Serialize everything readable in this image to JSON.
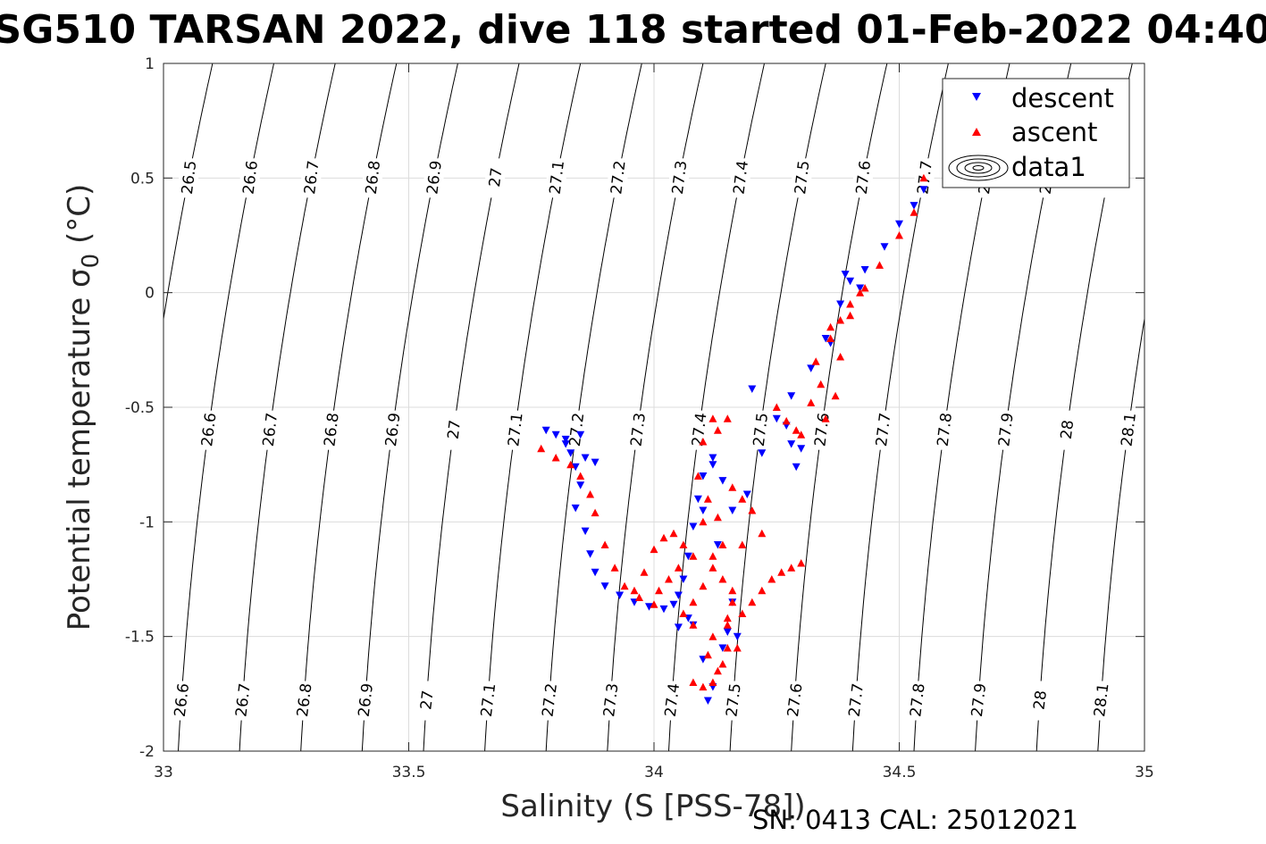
{
  "chart_data": {
    "type": "scatter",
    "title": "SG510 TARSAN 2022, dive 118 started 01-Feb-2022 04:40",
    "xlabel": "Salinity (S [PSS-78])",
    "ylabel_main": "Potential temperature ",
    "ylabel_sigma": "σ",
    "ylabel_sub": "0",
    "ylabel_unit": " (°C)",
    "xlim": [
      33,
      35
    ],
    "ylim": [
      -2,
      1
    ],
    "xticks": [
      33,
      33.5,
      34,
      34.5,
      35
    ],
    "yticks": [
      -2,
      -1.5,
      -1,
      -0.5,
      0,
      0.5,
      1
    ],
    "xtick_labels": [
      "33",
      "33.5",
      "34",
      "34.5",
      "35"
    ],
    "ytick_labels": [
      "-2",
      "-1.5",
      "-1",
      "-0.5",
      "0",
      "0.5",
      "1"
    ],
    "grid": true,
    "legend_position": "top-right",
    "footer": "SN: 0413  CAL: 25012021",
    "isopycnals": [
      26.5,
      26.6,
      26.7,
      26.8,
      26.9,
      27,
      27.1,
      27.2,
      27.3,
      27.4,
      27.5,
      27.6,
      27.7,
      27.8,
      27.9,
      28,
      28.1
    ],
    "isopycnal_labels": [
      "26.5",
      "26.6",
      "26.7",
      "26.8",
      "26.9",
      "27",
      "27.1",
      "27.2",
      "27.3",
      "27.4",
      "27.5",
      "27.6",
      "27.7",
      "27.8",
      "27.9",
      "28",
      "28.1"
    ],
    "series": [
      {
        "name": "descent",
        "marker": "triangle-down",
        "color": "#0000ff",
        "x": [
          33.78,
          33.8,
          33.82,
          33.83,
          33.84,
          33.85,
          33.84,
          33.86,
          33.87,
          33.88,
          33.9,
          33.93,
          33.96,
          33.99,
          34.02,
          34.04,
          34.05,
          34.06,
          34.07,
          34.08,
          34.09,
          34.1,
          34.12,
          34.14,
          34.16,
          34.19,
          34.22,
          34.25,
          34.28,
          34.32,
          34.35,
          34.38,
          34.4,
          34.43,
          34.47,
          34.5,
          34.53,
          34.55,
          34.08,
          34.1,
          34.12,
          34.11,
          34.14,
          34.15,
          34.17,
          34.16,
          34.13,
          34.1,
          34.12,
          34.2,
          34.27,
          34.28,
          34.29,
          34.3,
          34.36,
          34.39,
          34.42,
          33.82,
          33.85,
          33.86,
          33.88,
          34.05,
          34.07
        ],
        "y": [
          -0.6,
          -0.62,
          -0.66,
          -0.7,
          -0.76,
          -0.84,
          -0.94,
          -1.04,
          -1.14,
          -1.22,
          -1.28,
          -1.32,
          -1.35,
          -1.37,
          -1.38,
          -1.36,
          -1.32,
          -1.25,
          -1.15,
          -1.02,
          -0.9,
          -0.8,
          -0.75,
          -0.82,
          -0.95,
          -0.88,
          -0.7,
          -0.55,
          -0.45,
          -0.33,
          -0.2,
          -0.05,
          0.05,
          0.1,
          0.2,
          0.3,
          0.38,
          0.45,
          -1.45,
          -1.6,
          -1.72,
          -1.78,
          -1.55,
          -1.48,
          -1.5,
          -1.35,
          -1.1,
          -0.95,
          -0.72,
          -0.42,
          -0.58,
          -0.66,
          -0.76,
          -0.68,
          -0.22,
          0.08,
          0.02,
          -0.64,
          -0.62,
          -0.72,
          -0.74,
          -1.46,
          -1.42
        ]
      },
      {
        "name": "ascent",
        "marker": "triangle-up",
        "color": "#ff0000",
        "x": [
          33.77,
          33.8,
          33.83,
          33.85,
          33.87,
          33.88,
          33.9,
          33.92,
          33.94,
          33.97,
          34.0,
          33.96,
          33.98,
          34.0,
          34.02,
          34.04,
          34.06,
          34.08,
          34.05,
          34.03,
          34.01,
          34.06,
          34.08,
          34.1,
          34.12,
          34.14,
          34.13,
          34.11,
          34.09,
          34.1,
          34.12,
          34.15,
          34.13,
          34.1,
          34.08,
          34.12,
          34.15,
          34.18,
          34.2,
          34.22,
          34.24,
          34.26,
          34.28,
          34.3,
          34.22,
          34.2,
          34.18,
          34.16,
          34.14,
          34.12,
          34.1,
          34.08,
          34.18,
          34.16,
          34.15,
          34.17,
          34.25,
          34.27,
          34.29,
          34.3,
          34.32,
          34.35,
          34.33,
          34.36,
          34.38,
          34.4,
          34.43,
          34.46,
          34.5,
          34.53,
          34.55,
          34.38,
          34.4,
          34.42,
          34.36,
          34.34,
          34.37,
          34.12,
          34.14,
          34.16,
          34.11,
          34.13,
          34.15
        ],
        "y": [
          -0.68,
          -0.72,
          -0.75,
          -0.8,
          -0.88,
          -0.96,
          -1.1,
          -1.2,
          -1.28,
          -1.33,
          -1.36,
          -1.3,
          -1.22,
          -1.12,
          -1.07,
          -1.05,
          -1.1,
          -1.15,
          -1.2,
          -1.25,
          -1.3,
          -1.4,
          -1.35,
          -1.28,
          -1.2,
          -1.1,
          -0.98,
          -0.9,
          -0.8,
          -0.65,
          -0.55,
          -0.55,
          -0.6,
          -1.0,
          -1.45,
          -1.5,
          -1.55,
          -1.4,
          -1.35,
          -1.3,
          -1.25,
          -1.22,
          -1.2,
          -1.18,
          -1.05,
          -0.95,
          -0.9,
          -0.85,
          -1.62,
          -1.7,
          -1.72,
          -1.7,
          -1.1,
          -1.3,
          -1.45,
          -1.55,
          -0.5,
          -0.56,
          -0.6,
          -0.62,
          -0.48,
          -0.55,
          -0.3,
          -0.2,
          -0.12,
          -0.05,
          0.02,
          0.12,
          0.25,
          0.35,
          0.5,
          -0.28,
          -0.1,
          0.0,
          -0.15,
          -0.4,
          -0.45,
          -1.15,
          -1.25,
          -1.35,
          -1.58,
          -1.65,
          -1.42
        ]
      },
      {
        "name": "data1",
        "marker": "contour"
      }
    ]
  }
}
